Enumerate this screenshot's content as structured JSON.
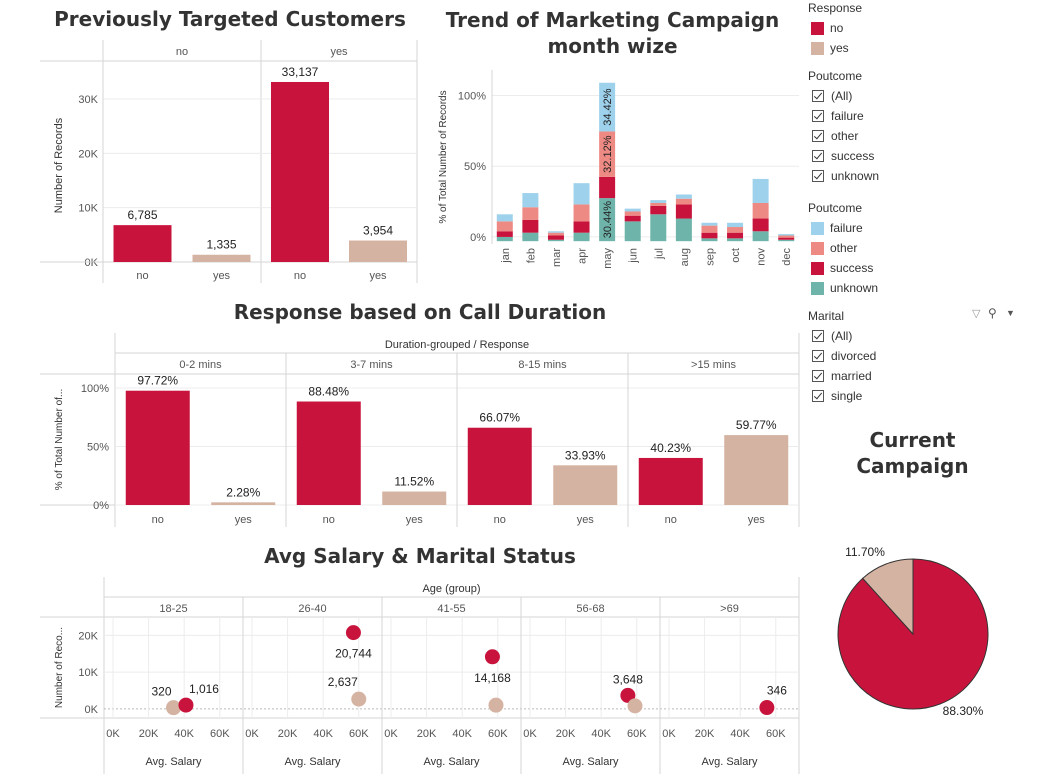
{
  "titles": {
    "prev": "Previously Targeted Customers",
    "trend_line1": "Trend of Marketing Campaign",
    "trend_line2": "month wize",
    "duration": "Response based on Call Duration",
    "salary": "Avg Salary & Marital Status",
    "current_line1": "Current",
    "current_line2": "Campaign"
  },
  "colors": {
    "no": "#c8143c",
    "yes": "#d5b3a2",
    "failure": "#9ed2ec",
    "other": "#ee8a84",
    "success": "#c8143c",
    "unknown": "#6fb4ab"
  },
  "legends": {
    "response": {
      "title": "Response",
      "items": [
        "no",
        "yes"
      ]
    },
    "poutcome_filter": {
      "title": "Poutcome",
      "items": [
        "(All)",
        "failure",
        "other",
        "success",
        "unknown"
      ]
    },
    "poutcome_color": {
      "title": "Poutcome",
      "items": [
        "failure",
        "other",
        "success",
        "unknown"
      ]
    },
    "marital_filter": {
      "title": "Marital",
      "items": [
        "(All)",
        "divorced",
        "married",
        "single"
      ]
    }
  },
  "chart_data": [
    {
      "id": "previously_targeted",
      "type": "bar",
      "title": "Previously Targeted Customers",
      "column_header_groups": [
        "no",
        "yes"
      ],
      "categories": [
        "no",
        "yes"
      ],
      "series": [
        {
          "group": "no",
          "values": [
            6785,
            1335
          ],
          "labels": [
            "6,785",
            "1,335"
          ]
        },
        {
          "group": "yes",
          "values": [
            33137,
            3954
          ],
          "labels": [
            "33,137",
            "3,954"
          ]
        }
      ],
      "ylabel": "Number of Records",
      "yticks": [
        "0K",
        "10K",
        "20K",
        "30K"
      ],
      "ylim": [
        0,
        37000
      ],
      "grid": true
    },
    {
      "id": "monthly_trend",
      "type": "bar",
      "stacked": true,
      "title": "Trend of Marketing Campaign month wize",
      "categories": [
        "jan",
        "feb",
        "mar",
        "apr",
        "may",
        "jun",
        "jul",
        "aug",
        "sep",
        "oct",
        "nov",
        "dec"
      ],
      "series": [
        {
          "name": "unknown",
          "values": [
            3,
            6,
            1,
            6,
            30.44,
            14,
            19,
            16,
            2,
            2,
            7,
            1
          ]
        },
        {
          "name": "success",
          "values": [
            4,
            9,
            3,
            8,
            15,
            4,
            6,
            10,
            4,
            4,
            9,
            1.5
          ]
        },
        {
          "name": "other",
          "values": [
            7,
            9,
            2,
            12,
            32.12,
            3,
            2,
            4,
            5,
            4,
            11,
            1.5
          ]
        },
        {
          "name": "failure",
          "values": [
            5,
            10,
            1,
            15,
            34.42,
            2,
            2,
            3,
            2,
            3,
            17,
            1
          ]
        }
      ],
      "segment_labels": {
        "may": [
          "30.44%",
          "",
          "32.12%",
          "34.42%"
        ]
      },
      "ylabel": "% of Total Number of Records",
      "yticks": [
        "0%",
        "50%",
        "100%"
      ],
      "ylim": [
        -5,
        118
      ],
      "grid": true
    },
    {
      "id": "call_duration",
      "type": "bar",
      "title": "Response based on Call Duration",
      "header": "Duration-grouped / Response",
      "groups": [
        "0-2 mins",
        "3-7 mins",
        "8-15 mins",
        ">15 mins"
      ],
      "categories": [
        "no",
        "yes"
      ],
      "values": [
        [
          97.72,
          2.28
        ],
        [
          88.48,
          11.52
        ],
        [
          66.07,
          33.93
        ],
        [
          40.23,
          59.77
        ]
      ],
      "labels": [
        [
          "97.72%",
          "2.28%"
        ],
        [
          "88.48%",
          "11.52%"
        ],
        [
          "66.07%",
          "33.93%"
        ],
        [
          "40.23%",
          "59.77%"
        ]
      ],
      "ylabel": "% of Total Number of...",
      "yticks": [
        "0%",
        "50%",
        "100%"
      ],
      "ylim": [
        0,
        112
      ],
      "grid": true
    },
    {
      "id": "avg_salary",
      "type": "scatter",
      "title": "Avg Salary & Marital Status",
      "header": "Age (group)",
      "groups": [
        "18-25",
        "26-40",
        "41-55",
        "56-68",
        ">69"
      ],
      "points": [
        {
          "group": "18-25",
          "response": "yes",
          "x": 34000,
          "y": 320,
          "label": "320"
        },
        {
          "group": "18-25",
          "response": "no",
          "x": 41000,
          "y": 1016,
          "label": "1,016"
        },
        {
          "group": "26-40",
          "response": "no",
          "x": 57000,
          "y": 20744,
          "label": "20,744"
        },
        {
          "group": "26-40",
          "response": "yes",
          "x": 60000,
          "y": 2637,
          "label": "2,637"
        },
        {
          "group": "41-55",
          "response": "no",
          "x": 57000,
          "y": 14168,
          "label": "14,168"
        },
        {
          "group": "41-55",
          "response": "yes",
          "x": 59000,
          "y": 1000,
          "label": ""
        },
        {
          "group": "56-68",
          "response": "no",
          "x": 55000,
          "y": 3648,
          "label": "3,648"
        },
        {
          "group": "56-68",
          "response": "yes",
          "x": 59000,
          "y": 800,
          "label": ""
        },
        {
          "group": ">69",
          "response": "no",
          "x": 55000,
          "y": 346,
          "label": "346"
        }
      ],
      "xlabel": "Avg. Salary",
      "xticks": [
        "0K",
        "20K",
        "40K",
        "60K"
      ],
      "xlim": [
        0,
        68000
      ],
      "ylabel": "Number of Reco...",
      "yticks": [
        "0K",
        "10K",
        "20K"
      ],
      "ylim": [
        -2500,
        25000
      ],
      "grid": true
    },
    {
      "id": "current_campaign",
      "type": "pie",
      "title": "Current Campaign",
      "slices": [
        {
          "name": "no",
          "value": 88.3,
          "label": "88.30%"
        },
        {
          "name": "yes",
          "value": 11.7,
          "label": "11.70%"
        }
      ]
    }
  ]
}
